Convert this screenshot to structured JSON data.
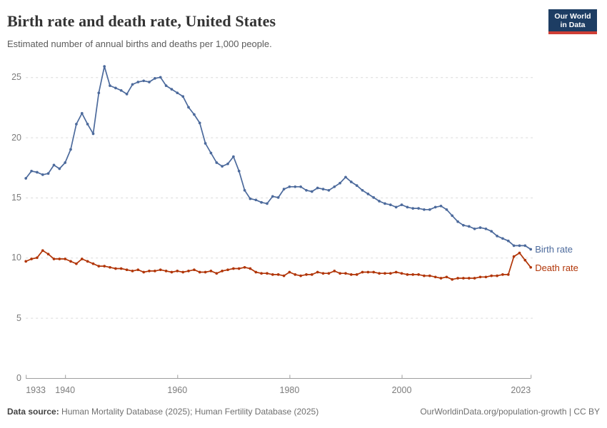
{
  "header": {
    "title": "Birth rate and death rate, United States",
    "subtitle": "Estimated number of annual births and deaths per 1,000 people.",
    "logo": {
      "line1": "Our World",
      "line2": "in Data",
      "bg": "#1d3d63",
      "accent": "#cf3e36"
    }
  },
  "chart_data": {
    "type": "line",
    "title": "Birth rate and death rate, United States",
    "subtitle": "Estimated number of annual births and deaths per 1,000 people.",
    "xlabel": "",
    "ylabel": "",
    "ylim": [
      0,
      26
    ],
    "y_ticks": [
      0,
      5,
      10,
      15,
      20,
      25
    ],
    "x_ticks": [
      1933,
      1940,
      1960,
      1980,
      2000,
      2023
    ],
    "grid": "horizontal-dashed",
    "legend_position": "right-end-labels",
    "years": [
      1933,
      1934,
      1935,
      1936,
      1937,
      1938,
      1939,
      1940,
      1941,
      1942,
      1943,
      1944,
      1945,
      1946,
      1947,
      1948,
      1949,
      1950,
      1951,
      1952,
      1953,
      1954,
      1955,
      1956,
      1957,
      1958,
      1959,
      1960,
      1961,
      1962,
      1963,
      1964,
      1965,
      1966,
      1967,
      1968,
      1969,
      1970,
      1971,
      1972,
      1973,
      1974,
      1975,
      1976,
      1977,
      1978,
      1979,
      1980,
      1981,
      1982,
      1983,
      1984,
      1985,
      1986,
      1987,
      1988,
      1989,
      1990,
      1991,
      1992,
      1993,
      1994,
      1995,
      1996,
      1997,
      1998,
      1999,
      2000,
      2001,
      2002,
      2003,
      2004,
      2005,
      2006,
      2007,
      2008,
      2009,
      2010,
      2011,
      2012,
      2013,
      2014,
      2015,
      2016,
      2017,
      2018,
      2019,
      2020,
      2021,
      2022,
      2023
    ],
    "series": [
      {
        "name": "Birth rate",
        "color": "#4C6A9C",
        "values": [
          16.6,
          17.2,
          17.1,
          16.9,
          17.0,
          17.7,
          17.4,
          17.9,
          19.0,
          21.1,
          22.0,
          21.1,
          20.3,
          23.7,
          25.9,
          24.3,
          24.1,
          23.9,
          23.6,
          24.4,
          24.6,
          24.7,
          24.6,
          24.9,
          25.0,
          24.3,
          24.0,
          23.7,
          23.4,
          22.5,
          21.9,
          21.2,
          19.5,
          18.7,
          17.9,
          17.6,
          17.8,
          18.4,
          17.2,
          15.6,
          14.9,
          14.8,
          14.6,
          14.5,
          15.1,
          15.0,
          15.7,
          15.9,
          15.9,
          15.9,
          15.6,
          15.5,
          15.8,
          15.7,
          15.6,
          15.9,
          16.2,
          16.7,
          16.3,
          16.0,
          15.6,
          15.3,
          15.0,
          14.7,
          14.5,
          14.4,
          14.2,
          14.4,
          14.2,
          14.1,
          14.1,
          14.0,
          14.0,
          14.2,
          14.3,
          14.0,
          13.5,
          13.0,
          12.7,
          12.6,
          12.4,
          12.5,
          12.4,
          12.2,
          11.8,
          11.6,
          11.4,
          11.0,
          11.0,
          11.0,
          10.7
        ]
      },
      {
        "name": "Death rate",
        "color": "#B13507",
        "values": [
          9.7,
          9.9,
          10.0,
          10.6,
          10.3,
          9.9,
          9.9,
          9.9,
          9.7,
          9.5,
          9.9,
          9.7,
          9.5,
          9.3,
          9.3,
          9.2,
          9.1,
          9.1,
          9.0,
          8.9,
          9.0,
          8.8,
          8.9,
          8.9,
          9.0,
          8.9,
          8.8,
          8.9,
          8.8,
          8.9,
          9.0,
          8.8,
          8.8,
          8.9,
          8.7,
          8.9,
          9.0,
          9.1,
          9.1,
          9.2,
          9.1,
          8.8,
          8.7,
          8.7,
          8.6,
          8.6,
          8.5,
          8.8,
          8.6,
          8.5,
          8.6,
          8.6,
          8.8,
          8.7,
          8.7,
          8.9,
          8.7,
          8.7,
          8.6,
          8.6,
          8.8,
          8.8,
          8.8,
          8.7,
          8.7,
          8.7,
          8.8,
          8.7,
          8.6,
          8.6,
          8.6,
          8.5,
          8.5,
          8.4,
          8.3,
          8.4,
          8.2,
          8.3,
          8.3,
          8.3,
          8.3,
          8.4,
          8.4,
          8.5,
          8.5,
          8.6,
          8.6,
          10.1,
          10.4,
          9.8,
          9.2
        ]
      }
    ]
  },
  "footer": {
    "source_label": "Data source:",
    "source_text": " Human Mortality Database (2025); Human Fertility Database (2025)",
    "link": "OurWorldinData.org/population-growth | CC BY"
  }
}
